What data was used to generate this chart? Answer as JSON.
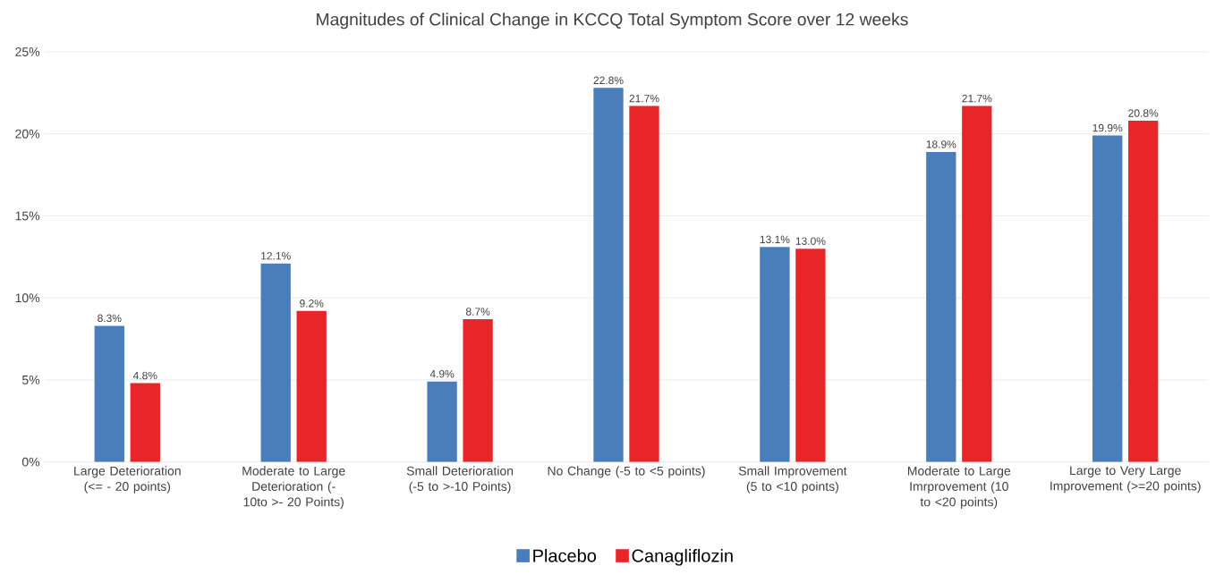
{
  "chart_data": {
    "type": "bar",
    "title": "Magnitudes of Clinical Change in KCCQ Total Symptom Score over 12 weeks",
    "categories": [
      "Large Deterioration (<= - 20 points)",
      "Moderate to Large Deterioration (-10to >- 20 Points)",
      "Small Deterioration (-5 to >-10 Points)",
      "No Change (-5 to <5 points)",
      "Small Improvement (5 to <10 points)",
      "Moderate to Large Imrprovement (10 to <20 points)",
      "Large to Very Large Improvement (>=20 points)"
    ],
    "series": [
      {
        "name": "Placebo",
        "color": "#4a7ebb",
        "values": [
          8.3,
          12.1,
          4.9,
          22.8,
          13.1,
          18.9,
          19.9
        ],
        "value_labels": [
          "8.3%",
          "12.1%",
          "4.9%",
          "22.8%",
          "13.1%",
          "18.9%",
          "19.9%"
        ]
      },
      {
        "name": "Canagliflozin",
        "color": "#e8262a",
        "values": [
          4.8,
          9.2,
          8.7,
          21.7,
          13.0,
          21.7,
          20.8
        ],
        "value_labels": [
          "4.8%",
          "9.2%",
          "8.7%",
          "21.7%",
          "13.0%",
          "21.7%",
          "20.8%"
        ]
      }
    ],
    "ylim": [
      0,
      25
    ],
    "yticks": [
      {
        "value": 0,
        "label": "0%"
      },
      {
        "value": 5,
        "label": "5%"
      },
      {
        "value": 10,
        "label": "10%"
      },
      {
        "value": 15,
        "label": "15%"
      },
      {
        "value": 20,
        "label": "20%"
      },
      {
        "value": 25,
        "label": "25%"
      }
    ],
    "grid": "y",
    "legend": "bottom"
  }
}
